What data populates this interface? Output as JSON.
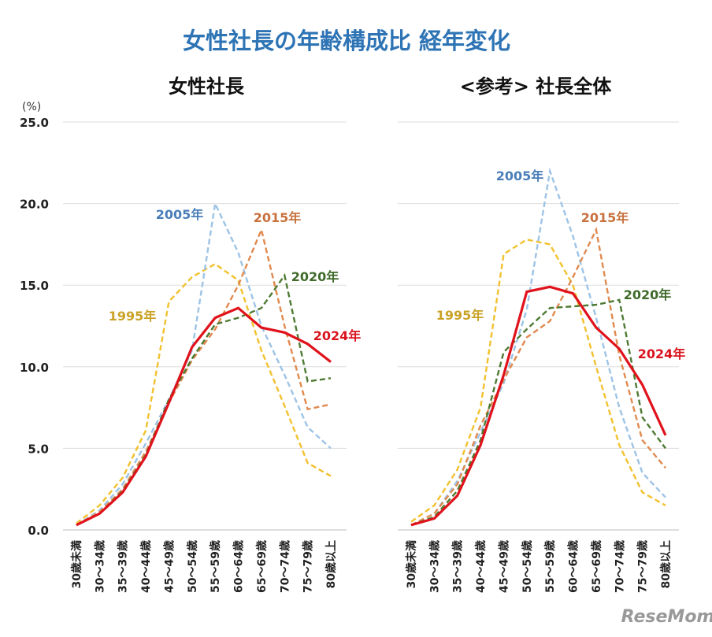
{
  "title": "女性社長の年齢構成比 経年変化",
  "unit_label": "(%)",
  "logo": "ReseMom",
  "colors": {
    "title": "#2e74b5",
    "1995": "#f2c12e",
    "2005": "#9dc3e6",
    "2015": "#e08a4f",
    "2020": "#4e7a33",
    "2024": "#e0121b"
  },
  "chart_data": [
    {
      "type": "line",
      "title": "女性社長",
      "categories": [
        "30歳未満",
        "30～34歳",
        "35～39歳",
        "40～44歳",
        "45～49歳",
        "50～54歳",
        "55～59歳",
        "60～64歳",
        "65～69歳",
        "70～74歳",
        "75～79歳",
        "80歳以上"
      ],
      "ylim": [
        0,
        25
      ],
      "yticks": [
        "0.0",
        "5.0",
        "10.0",
        "15.0",
        "20.0",
        "25.0"
      ],
      "grid": true,
      "series": [
        {
          "name": "1995年",
          "style": "dashed",
          "values": [
            0.4,
            1.5,
            3.2,
            6.1,
            14.0,
            15.5,
            16.3,
            15.3,
            11.0,
            7.6,
            4.1,
            3.3
          ]
        },
        {
          "name": "2005年",
          "style": "dashed",
          "values": [
            0.3,
            1.2,
            2.8,
            5.3,
            8.0,
            11.0,
            20.0,
            17.0,
            12.5,
            9.5,
            6.3,
            5.0
          ]
        },
        {
          "name": "2015年",
          "style": "dashed",
          "values": [
            0.3,
            1.1,
            2.5,
            4.8,
            7.8,
            10.4,
            12.3,
            15.0,
            18.4,
            12.5,
            7.4,
            7.7
          ]
        },
        {
          "name": "2020年",
          "style": "dashed",
          "values": [
            0.3,
            1.0,
            2.4,
            4.6,
            8.0,
            10.5,
            12.6,
            13.0,
            13.6,
            15.6,
            9.1,
            9.3
          ]
        },
        {
          "name": "2024年",
          "style": "solid",
          "values": [
            0.3,
            1.0,
            2.3,
            4.5,
            7.8,
            11.2,
            13.0,
            13.6,
            12.4,
            12.1,
            11.4,
            10.3
          ]
        }
      ]
    },
    {
      "type": "line",
      "title": "<参考> 社長全体",
      "categories": [
        "30歳未満",
        "30～34歳",
        "35～39歳",
        "40～44歳",
        "45～49歳",
        "50～54歳",
        "55～59歳",
        "60～64歳",
        "65～69歳",
        "70～74歳",
        "75～79歳",
        "80歳以上"
      ],
      "ylim": [
        0,
        25
      ],
      "grid": true,
      "series": [
        {
          "name": "1995年",
          "style": "dashed",
          "values": [
            0.5,
            1.5,
            3.7,
            7.5,
            16.9,
            17.8,
            17.5,
            15.0,
            10.0,
            5.2,
            2.3,
            1.5
          ]
        },
        {
          "name": "2005年",
          "style": "dashed",
          "values": [
            0.3,
            1.0,
            3.0,
            6.0,
            9.0,
            13.5,
            22.0,
            18.0,
            13.0,
            7.5,
            3.5,
            2.0
          ]
        },
        {
          "name": "2015年",
          "style": "dashed",
          "values": [
            0.3,
            1.0,
            2.8,
            6.4,
            9.2,
            11.8,
            12.8,
            15.5,
            18.4,
            10.7,
            5.5,
            3.8
          ]
        },
        {
          "name": "2020年",
          "style": "dashed",
          "values": [
            0.3,
            0.8,
            2.4,
            5.5,
            10.9,
            12.3,
            13.6,
            13.7,
            13.8,
            14.1,
            6.9,
            5.0
          ]
        },
        {
          "name": "2024年",
          "style": "solid",
          "values": [
            0.3,
            0.7,
            2.1,
            5.2,
            9.5,
            14.6,
            14.9,
            14.5,
            12.4,
            11.1,
            8.9,
            5.8
          ]
        }
      ]
    }
  ]
}
